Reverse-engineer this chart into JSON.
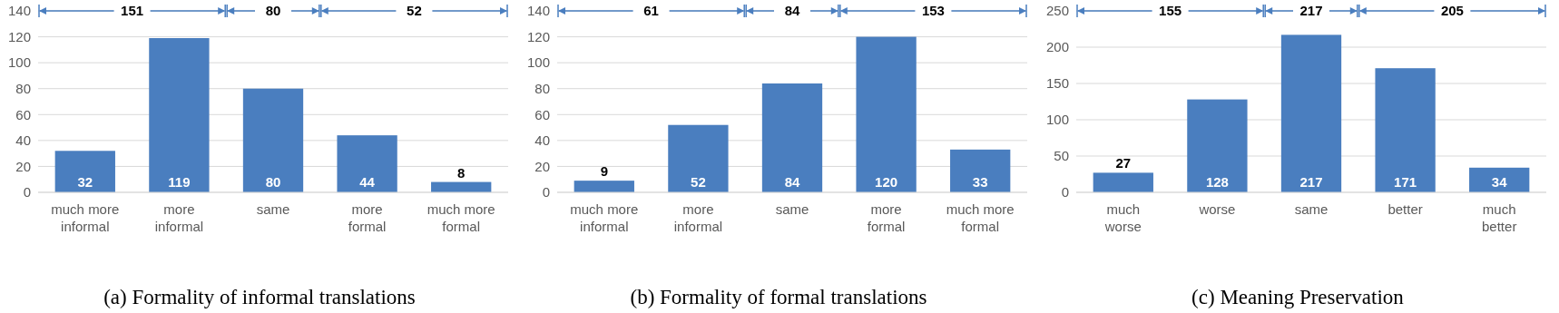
{
  "chart_data": [
    {
      "type": "bar",
      "title": "(a) Formality of informal translations",
      "categories": [
        "much more informal",
        "more informal",
        "same",
        "more formal",
        "much more formal"
      ],
      "values": [
        32,
        119,
        80,
        44,
        8
      ],
      "color": "#4a7ebf",
      "ylim": [
        0,
        140
      ],
      "yticks": [
        0,
        20,
        40,
        60,
        80,
        100,
        120,
        140
      ],
      "grid": "y",
      "data_labels": true,
      "annotations": [
        "151",
        "80",
        "52"
      ]
    },
    {
      "type": "bar",
      "title": "(b) Formality of formal translations",
      "categories": [
        "much more informal",
        "more informal",
        "same",
        "more formal",
        "much more formal"
      ],
      "values": [
        9,
        52,
        84,
        120,
        33
      ],
      "color": "#4a7ebf",
      "ylim": [
        0,
        140
      ],
      "yticks": [
        0,
        20,
        40,
        60,
        80,
        100,
        120,
        140
      ],
      "grid": "y",
      "data_labels": true,
      "annotations": [
        "61",
        "84",
        "153"
      ]
    },
    {
      "type": "bar",
      "title": "(c) Meaning Preservation",
      "categories": [
        "much worse",
        "worse",
        "same",
        "better",
        "much better"
      ],
      "values": [
        27,
        128,
        217,
        171,
        34
      ],
      "color": "#4a7ebf",
      "ylim": [
        0,
        250
      ],
      "yticks": [
        0,
        50,
        100,
        150,
        200,
        250
      ],
      "grid": "y",
      "data_labels": true,
      "annotations": [
        "155",
        "217",
        "205"
      ]
    }
  ]
}
